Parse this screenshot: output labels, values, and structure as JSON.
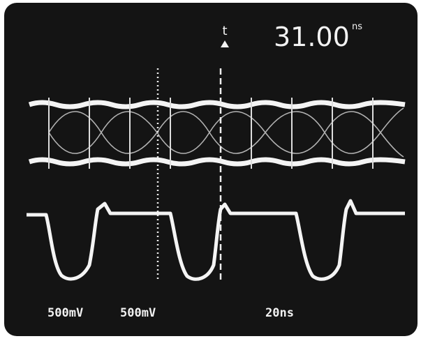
{
  "readout": {
    "symbol": "t",
    "value": "31.00",
    "unit": "ns"
  },
  "labels": [
    "500mV",
    "500mV",
    "20ns"
  ]
}
